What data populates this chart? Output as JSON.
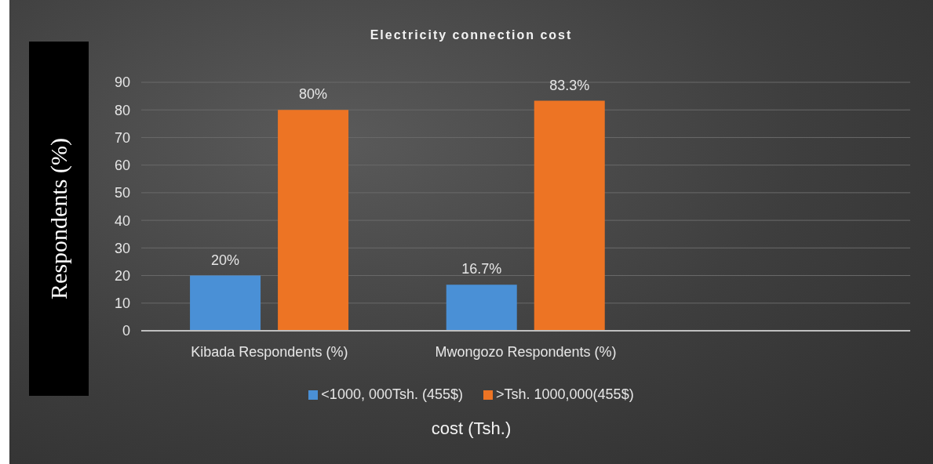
{
  "chart_data": {
    "type": "bar",
    "title": "Electricity connection cost",
    "xlabel": "cost (Tsh.)",
    "ylabel": "Respondents (%)",
    "categories": [
      "Kibada Respondents (%)",
      "Mwongozo Respondents (%)",
      null
    ],
    "series": [
      {
        "name": "<1000, 000Tsh. (455$)",
        "color": "#4a90d6",
        "values": [
          20,
          16.7,
          null
        ],
        "value_labels": [
          "20%",
          "16.7%",
          null
        ]
      },
      {
        "name": ">Tsh. 1000,000(455$)",
        "color": "#ed7424",
        "values": [
          80,
          83.3,
          null
        ],
        "value_labels": [
          "80%",
          "83.3%",
          null
        ]
      }
    ],
    "ylim": [
      0,
      90
    ],
    "yticks": [
      0,
      10,
      20,
      30,
      40,
      50,
      60,
      70,
      80,
      90
    ],
    "grid": "y",
    "legend": "bottom"
  }
}
